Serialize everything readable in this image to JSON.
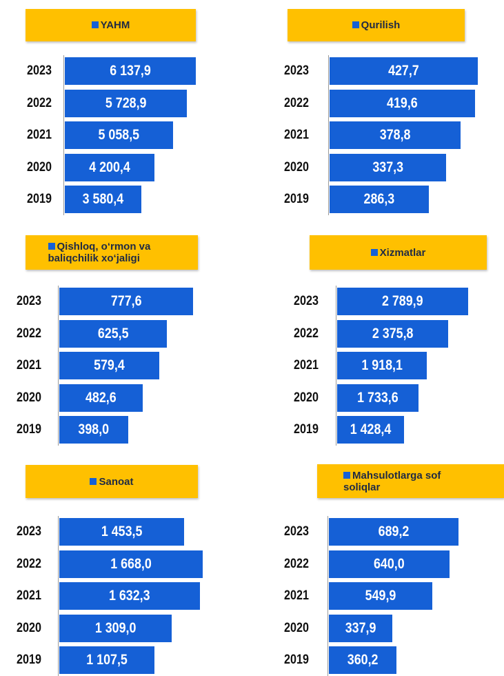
{
  "chart_data": [
    {
      "type": "barh",
      "title": "YAHM",
      "categories": [
        "2023",
        "2022",
        "2021",
        "2020",
        "2019"
      ],
      "values": [
        6137.9,
        5728.9,
        5058.5,
        4200.4,
        3580.4
      ],
      "value_labels": [
        "6 137,9",
        "5 728,9",
        "5 058,5",
        "4 200,4",
        "3 580,4"
      ],
      "color": "#1560d6",
      "xlim": [
        0,
        6460
      ]
    },
    {
      "type": "barh",
      "title": "Qurilish",
      "categories": [
        "2023",
        "2022",
        "2021",
        "2020",
        "2019"
      ],
      "values": [
        427.7,
        419.6,
        378.8,
        337.3,
        286.3
      ],
      "value_labels": [
        "427,7",
        "419,6",
        "378,8",
        "337,3",
        "286,3"
      ],
      "color": "#1560d6",
      "xlim": [
        0,
        440
      ]
    },
    {
      "type": "barh",
      "title": "Qishloq, o‘rmon va baliqchilik xo‘jaligi",
      "categories": [
        "2023",
        "2022",
        "2021",
        "2020",
        "2019"
      ],
      "values": [
        777.6,
        625.5,
        579.4,
        482.6,
        398.0
      ],
      "value_labels": [
        "777,6",
        "625,5",
        "579,4",
        "482,6",
        "398,0"
      ],
      "color": "#1560d6",
      "xlim": [
        0,
        800
      ]
    },
    {
      "type": "barh",
      "title": "Xizmatlar",
      "categories": [
        "2023",
        "2022",
        "2021",
        "2020",
        "2019"
      ],
      "values": [
        2789.9,
        2375.8,
        1918.1,
        1733.6,
        1428.4
      ],
      "value_labels": [
        "2 789,9",
        "2 375,8",
        "1 918,1",
        "1 733,6",
        "1 428,4"
      ],
      "color": "#1560d6",
      "xlim": [
        0,
        2900
      ]
    },
    {
      "type": "barh",
      "title": "Sanoat",
      "categories": [
        "2023",
        "2022",
        "2021",
        "2020",
        "2019"
      ],
      "values": [
        1453.5,
        1668.0,
        1632.3,
        1309.0,
        1107.5
      ],
      "value_labels": [
        "1 453,5",
        "1 668,0",
        "1 632,3",
        "1 309,0",
        "1 107,5"
      ],
      "color": "#1560d6",
      "xlim": [
        0,
        1700
      ]
    },
    {
      "type": "barh",
      "title": "Mahsulotlarga sof soliqlar",
      "categories": [
        "2023",
        "2022",
        "2021",
        "2020",
        "2019"
      ],
      "values": [
        689.2,
        640.0,
        549.9,
        337.9,
        360.2
      ],
      "value_labels": [
        "689,2",
        "640,0",
        "549,9",
        "337,9",
        "360,2"
      ],
      "color": "#1560d6",
      "xlim": [
        0,
        700
      ]
    }
  ]
}
